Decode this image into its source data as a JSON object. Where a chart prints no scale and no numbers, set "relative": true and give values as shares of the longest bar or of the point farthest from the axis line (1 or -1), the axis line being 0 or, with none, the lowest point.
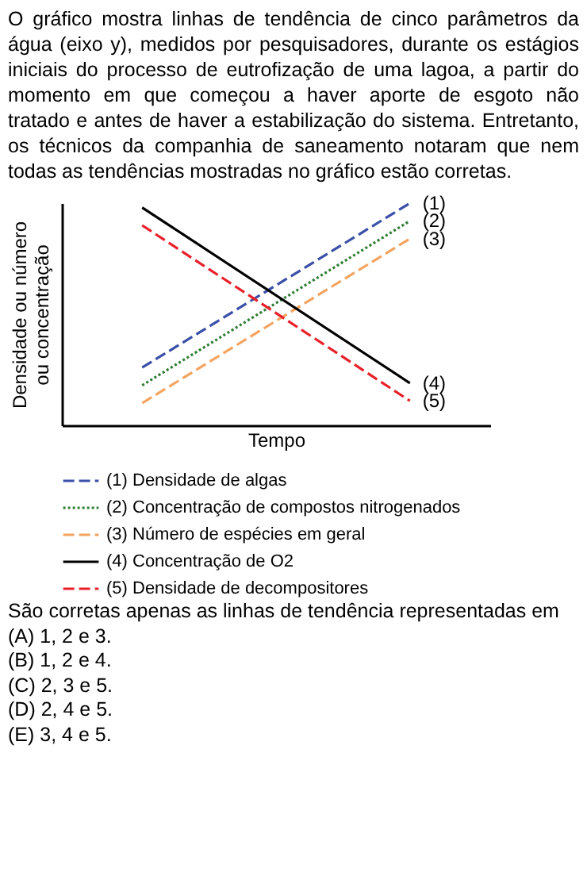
{
  "chart_data": {
    "type": "line",
    "relative": true,
    "title": "O gráfico mostra linhas de tendência de cinco parâmetros da água (eixo y), medidos por pesquisadores, durante os estágios iniciais do processo de eutrofização de uma lagoa, a partir do momento em que começou a haver aporte de esgoto não tratado e antes de haver a estabilização do sistema. Entretanto, os técnicos da companhia de saneamento notaram que nem todas as tendências mostradas no gráfico estão corretas.",
    "xlabel": "Tempo",
    "ylabel": "Densidade ou número\nou concentração",
    "categories": [
      null,
      null
    ],
    "tick_labels": false,
    "legend": "bottom",
    "grid": false,
    "marker": "none",
    "series": [
      {
        "name": "(1) Densidade de algas",
        "color": "#3a4fa8",
        "line_style": "dashed",
        "values": [
          0.26,
          1
        ]
      },
      {
        "name": "(2) Concentração de compostos nitrogenados",
        "color": "#2e7d32",
        "line_style": "dotted",
        "values": [
          0.18,
          0.92
        ]
      },
      {
        "name": "(3) Número de espécies em geral",
        "color": "#f4a460",
        "line_style": "dashed",
        "values": [
          0.1,
          0.84
        ]
      },
      {
        "name": "(4) Concentração de O2",
        "color": "#000000",
        "line_style": "solid",
        "values": [
          0.98,
          0.19
        ]
      },
      {
        "name": "(5) Densidade de decompositores",
        "color": "#e8202a",
        "line_style": "dashed",
        "values": [
          0.9,
          0.11
        ]
      }
    ],
    "annotations": [
      "(1)",
      "(2)",
      "(3)",
      "(4)",
      "(5)",
      "São corretas apenas as linhas de tendência representadas em",
      "(A) 1, 2 e 3.",
      "(B) 1, 2 e 4.",
      "(C) 2, 3 e 5.",
      "(D) 2, 4 e 5.",
      "(E) 3, 4 e 5."
    ]
  }
}
